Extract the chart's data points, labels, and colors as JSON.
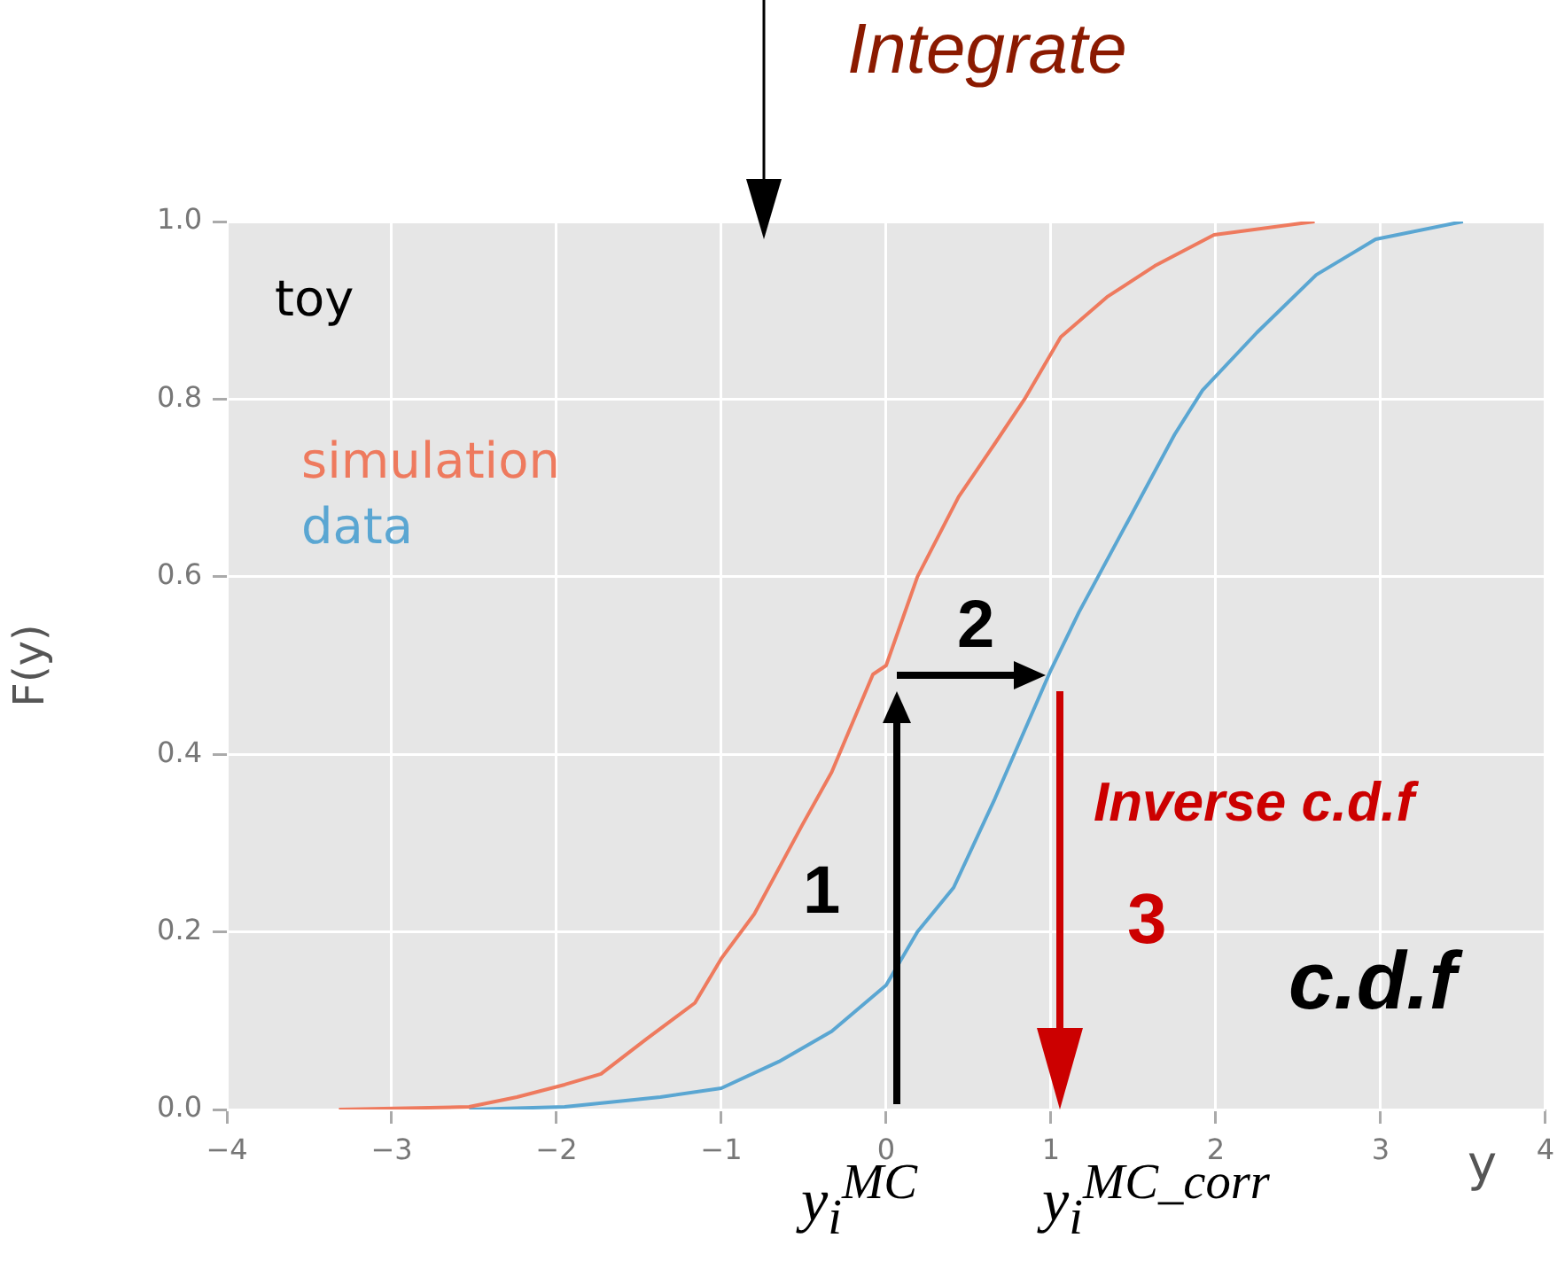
{
  "chart_data": {
    "type": "line",
    "xlabel": "y",
    "ylabel": "F(y)",
    "annotations": [
      "Integrate",
      "toy",
      "2",
      "1",
      "Inverse c.d.f",
      "3",
      "c.d.f",
      "y$_{i}$$^{MC}$",
      "y$_{i}$$^{MC_corr}$"
    ],
    "series": [
      {
        "name": "simulation",
        "color": "#ee7a5e",
        "x": [
          -3.32,
          -2.53,
          -2.24,
          -1.95,
          -1.73,
          -1.45,
          -1.16,
          -1.0,
          -0.8,
          -0.51,
          -0.33,
          -0.08,
          0,
          0.19,
          0.44,
          0.66,
          0.84,
          1.06,
          1.34,
          1.63,
          1.99,
          2.6
        ],
        "values": [
          0,
          0.003,
          0.014,
          0.028,
          0.04,
          0.08,
          0.12,
          0.17,
          0.22,
          0.32,
          0.38,
          0.49,
          0.5,
          0.6,
          0.69,
          0.75,
          0.8,
          0.87,
          0.915,
          0.95,
          0.985,
          1.0
        ]
      },
      {
        "name": "data",
        "color": "#5aa6d2",
        "x": [
          -2.53,
          -1.95,
          -1.37,
          -1.0,
          -0.65,
          -0.33,
          0,
          0.19,
          0.41,
          0.66,
          1.0,
          1.17,
          1.46,
          1.75,
          1.92,
          2.25,
          2.61,
          2.97,
          3.5
        ],
        "values": [
          0,
          0.003,
          0.014,
          0.024,
          0.054,
          0.088,
          0.14,
          0.2,
          0.25,
          0.35,
          0.495,
          0.56,
          0.66,
          0.76,
          0.81,
          0.875,
          0.94,
          0.98,
          1.0
        ]
      }
    ],
    "xlim": [
      -4,
      4
    ],
    "xticks": [
      {
        "value": -4,
        "label": "−4"
      },
      {
        "value": -3,
        "label": "−3"
      },
      {
        "value": -2,
        "label": "−2"
      },
      {
        "value": -1,
        "label": "−1"
      },
      0,
      1,
      2,
      3,
      4
    ],
    "ylim": [
      0,
      1
    ],
    "yticks": [
      {
        "value": 0,
        "label": "0.0"
      },
      0.2,
      0.4,
      0.6,
      0.8,
      {
        "value": 1,
        "label": "1.0"
      }
    ],
    "grid": true,
    "legend": "top left",
    "marker": "none",
    "line_style": "solid"
  }
}
